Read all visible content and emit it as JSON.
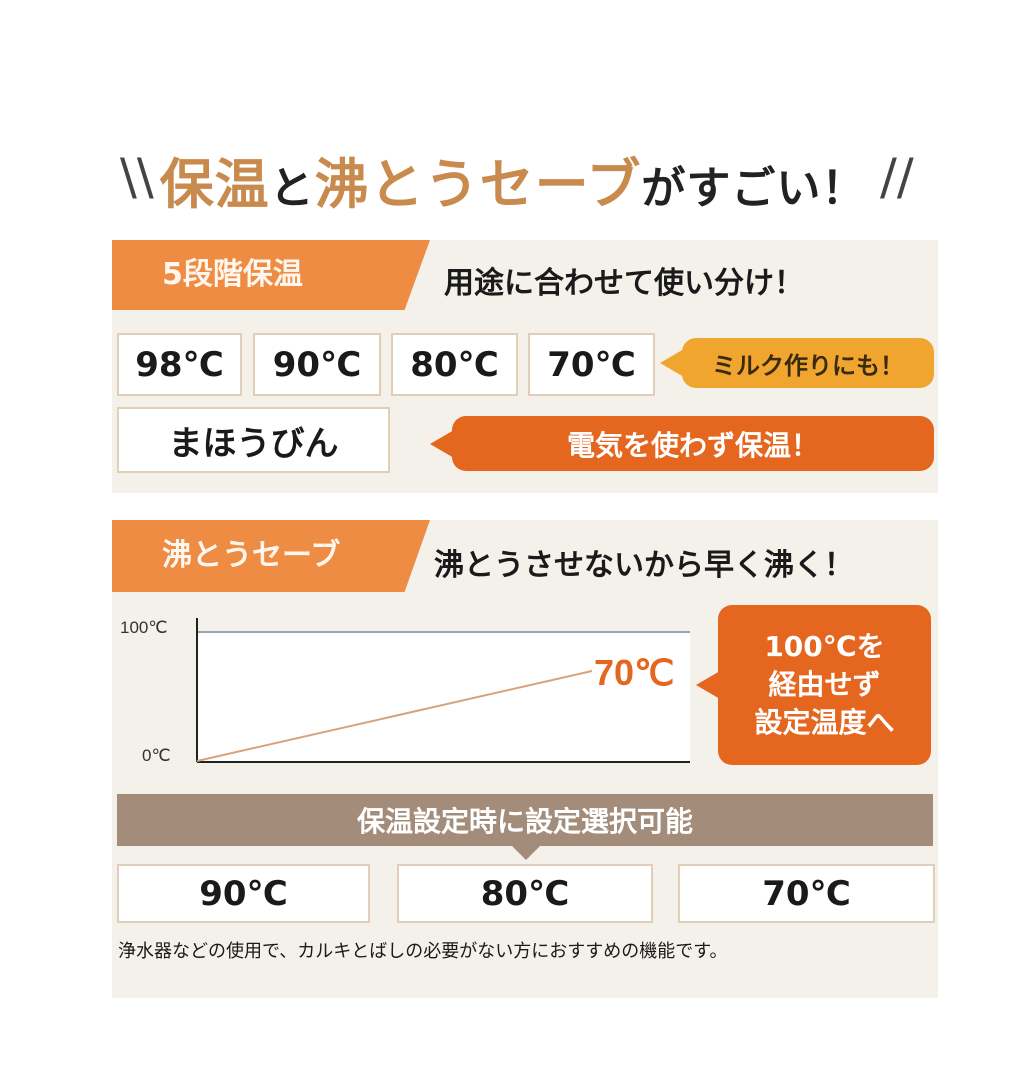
{
  "title": {
    "part1": "保温",
    "part2": "と",
    "part3": "沸とうセーブ",
    "part4": "がすごい！"
  },
  "keep_warm": {
    "tag": "5段階保温",
    "headline": "用途に合わせて使い分け！",
    "temps": [
      "98℃",
      "90℃",
      "80℃",
      "70℃"
    ],
    "milk_note": "ミルク作りにも！",
    "mahoubin": "まほうびん",
    "mahoubin_note": "電気を使わず保温！"
  },
  "boil_save": {
    "tag": "沸とうセーブ",
    "headline": "沸とうさせないから早く沸く！",
    "bubble": [
      "100℃を",
      "経由せず",
      "設定温度へ"
    ],
    "selectable_label": "保温設定時に設定選択可能",
    "temps": [
      "90℃",
      "80℃",
      "70℃"
    ],
    "footnote": "浄水器などの使用で、カルキとばしの必要がない方におすすめの機能です。"
  },
  "chart_data": {
    "type": "line",
    "y_ticks": [
      "100℃",
      "0℃"
    ],
    "ylim": [
      0,
      100
    ],
    "series": [
      {
        "values": [
          0,
          70
        ]
      }
    ],
    "reference_line": 100,
    "end_label": "70℃"
  },
  "colors": {
    "orange": "#ee8c44",
    "dark_orange": "#e4661f",
    "yellow": "#f0a52e",
    "brown": "#a38c7a",
    "panel": "#f4f0ea"
  }
}
